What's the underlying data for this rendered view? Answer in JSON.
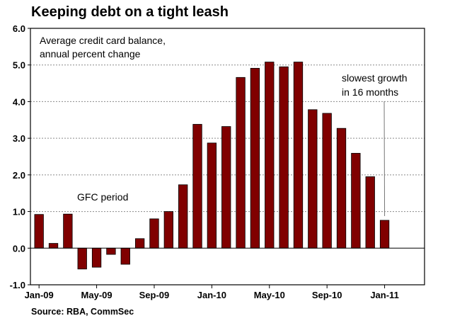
{
  "title": "Keeping debt on a tight leash",
  "source": "Source: RBA, CommSec",
  "chart_data": {
    "type": "bar",
    "ylabel": "Average credit card balance,\nannual percent change",
    "ylabel_lines": [
      "Average credit card balance,",
      "annual percent change"
    ],
    "ylim": [
      -1.0,
      6.0
    ],
    "yticks": [
      "6.0",
      "5.0",
      "4.0",
      "3.0",
      "2.0",
      "1.0",
      "0.0",
      "-1.0"
    ],
    "ytick_values": [
      6,
      5,
      4,
      3,
      2,
      1,
      0,
      -1
    ],
    "xticks": [
      "Jan-09",
      "May-09",
      "Sep-09",
      "Jan-10",
      "May-10",
      "Sep-10",
      "Jan-11"
    ],
    "grid": "horizontal-dashed",
    "bar_color": "#800000",
    "categories": [
      "Jan-09",
      "Feb-09",
      "Mar-09",
      "Apr-09",
      "May-09",
      "Jun-09",
      "Jul-09",
      "Aug-09",
      "Sep-09",
      "Oct-09",
      "Nov-09",
      "Dec-09",
      "Jan-10",
      "Feb-10",
      "Mar-10",
      "Apr-10",
      "May-10",
      "Jun-10",
      "Jul-10",
      "Aug-10",
      "Sep-10",
      "Oct-10",
      "Nov-10",
      "Dec-10",
      "Jan-11"
    ],
    "values": [
      0.92,
      0.13,
      0.93,
      -0.57,
      -0.52,
      -0.17,
      -0.44,
      0.26,
      0.8,
      1.0,
      1.73,
      3.38,
      2.87,
      3.32,
      4.66,
      4.91,
      5.08,
      4.95,
      5.08,
      3.78,
      3.68,
      3.27,
      2.59,
      1.95,
      0.76
    ],
    "annotations": {
      "gfc": "GFC period",
      "slowest_lines": [
        "slowest growth",
        "in 16 months"
      ]
    }
  }
}
